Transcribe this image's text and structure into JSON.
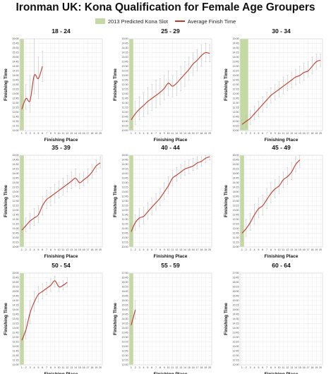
{
  "title": "Ironman UK: Kona Qualification for Female Age Groupers",
  "legend": {
    "kona_slot": "2013 Predicted Kona Slot",
    "avg_finish": "Average Finish Time"
  },
  "colors": {
    "kona_slot": "#c5d9a5",
    "line": "#c0392b",
    "grid": "#e3e3e3",
    "error_bar": "#bbbbbb"
  },
  "chart_data": [
    {
      "type": "line",
      "title": "18 - 24",
      "xlabel": "Finishing Place",
      "ylabel": "Finishing Time",
      "x_ticks": [
        "1",
        "2",
        "3",
        "4",
        "5",
        "6",
        "7",
        "8",
        "9",
        "10",
        "11",
        "12",
        "13",
        "14",
        "15",
        "16",
        "17",
        "18",
        "19",
        "20"
      ],
      "y_ticks": [
        "11:00",
        "11:15",
        "11:30",
        "11:45",
        "12:00",
        "12:15",
        "12:30",
        "12:45",
        "13:00",
        "13:15",
        "13:30",
        "13:45",
        "14:00",
        "14:15",
        "14:30",
        "14:45",
        "15:00",
        "15:15",
        "15:30",
        "15:45",
        "16:00"
      ],
      "ylim": [
        "11:00",
        "16:00"
      ],
      "kona_slots": 1,
      "x": [
        1,
        2,
        3,
        4,
        5,
        6
      ],
      "avg_time": [
        "12:10",
        "12:45",
        "12:38",
        "14:00",
        "13:50",
        "14:30"
      ],
      "range_low": [
        "11:40",
        "12:10",
        "12:00",
        "13:00",
        "12:45",
        "13:40"
      ],
      "range_high": [
        "12:50",
        "13:30",
        "14:00",
        "16:00",
        "15:00",
        "15:20"
      ]
    },
    {
      "type": "line",
      "title": "25 - 29",
      "xlabel": "Finishing Place",
      "ylabel": "Finishing Time",
      "x_ticks": [
        "1",
        "2",
        "3",
        "4",
        "5",
        "6",
        "7",
        "8",
        "9",
        "10",
        "11",
        "12",
        "13",
        "14",
        "15",
        "16",
        "17",
        "18",
        "19",
        "20"
      ],
      "y_ticks": [
        "10:00",
        "10:15",
        "10:30",
        "10:45",
        "11:00",
        "11:15",
        "11:30",
        "11:45",
        "12:00",
        "12:15",
        "12:30",
        "12:45",
        "13:00",
        "13:15",
        "13:30",
        "13:45",
        "14:00",
        "14:15",
        "14:30",
        "14:45",
        "15:00"
      ],
      "ylim": [
        "10:00",
        "15:00"
      ],
      "kona_slots": 1,
      "x": [
        1,
        2,
        3,
        4,
        5,
        6,
        7,
        8,
        9,
        10,
        11,
        12,
        13,
        14,
        15,
        16,
        17,
        18,
        19,
        20
      ],
      "avg_time": [
        "10:35",
        "10:55",
        "11:10",
        "11:22",
        "11:35",
        "11:45",
        "11:55",
        "12:05",
        "12:18",
        "12:35",
        "12:25",
        "12:35",
        "12:50",
        "13:05",
        "13:20",
        "13:38",
        "13:50",
        "14:05",
        "14:15",
        "14:12"
      ],
      "range_low": [
        "10:10",
        "10:20",
        "10:35",
        "10:45",
        "10:55",
        "11:05",
        "11:15",
        "11:25",
        "11:40",
        "11:55",
        "11:50",
        "11:55",
        "12:10",
        "12:25",
        "12:45",
        "13:00",
        "13:15",
        "13:30",
        "13:45",
        "13:45"
      ],
      "range_high": [
        "11:05",
        "11:35",
        "11:50",
        "12:05",
        "12:20",
        "12:30",
        "12:45",
        "12:50",
        "13:00",
        "13:15",
        "13:00",
        "13:15",
        "13:30",
        "13:45",
        "14:00",
        "14:15",
        "14:25",
        "14:40",
        "14:45",
        "14:40"
      ]
    },
    {
      "type": "line",
      "title": "30 - 34",
      "xlabel": "Finishing Place",
      "ylabel": "Finishing Time",
      "x_ticks": [
        "1",
        "2",
        "3",
        "4",
        "5",
        "6",
        "7",
        "8",
        "9",
        "10",
        "11",
        "12",
        "13",
        "14",
        "15",
        "16",
        "17",
        "18",
        "19",
        "20"
      ],
      "y_ticks": [
        "10:00",
        "10:15",
        "10:30",
        "10:45",
        "11:00",
        "11:15",
        "11:30",
        "11:45",
        "12:00",
        "12:15",
        "12:30",
        "12:45",
        "13:00",
        "13:15",
        "13:30",
        "13:45",
        "14:00",
        "14:15",
        "14:30",
        "14:45",
        "15:00"
      ],
      "ylim": [
        "10:00",
        "15:00"
      ],
      "kona_slots": 2,
      "x": [
        1,
        2,
        3,
        4,
        5,
        6,
        7,
        8,
        9,
        10,
        11,
        12,
        13,
        14,
        15,
        16,
        17,
        18,
        19,
        20
      ],
      "avg_time": [
        "10:20",
        "10:30",
        "10:40",
        "10:55",
        "11:10",
        "11:25",
        "11:40",
        "11:55",
        "12:05",
        "12:15",
        "12:25",
        "12:35",
        "12:45",
        "12:55",
        "13:00",
        "13:10",
        "13:15",
        "13:30",
        "13:45",
        "13:50"
      ],
      "range_low": [
        "10:05",
        "10:10",
        "10:20",
        "10:35",
        "10:45",
        "11:00",
        "11:15",
        "11:30",
        "11:40",
        "11:50",
        "12:00",
        "12:10",
        "12:20",
        "12:30",
        "12:35",
        "12:45",
        "12:55",
        "13:05",
        "13:20",
        "13:30"
      ],
      "range_high": [
        "10:35",
        "10:50",
        "11:05",
        "11:20",
        "11:35",
        "11:50",
        "12:05",
        "12:20",
        "12:30",
        "12:40",
        "12:55",
        "13:00",
        "13:10",
        "13:20",
        "13:30",
        "13:40",
        "13:45",
        "14:00",
        "14:10",
        "14:10"
      ]
    },
    {
      "type": "line",
      "title": "35 - 39",
      "xlabel": "Finishing Place",
      "ylabel": "Finishing Time",
      "x_ticks": [
        "1",
        "2",
        "3",
        "4",
        "5",
        "6",
        "7",
        "8",
        "9",
        "10",
        "11",
        "12",
        "13",
        "14",
        "15",
        "16",
        "17",
        "18",
        "19",
        "20"
      ],
      "y_ticks": [
        "10:00",
        "10:15",
        "10:30",
        "10:45",
        "11:00",
        "11:15",
        "11:30",
        "11:45",
        "12:00",
        "12:15",
        "12:30",
        "12:45",
        "13:00",
        "13:15",
        "13:30",
        "13:45",
        "14:00",
        "14:15",
        "14:30",
        "14:45",
        "15:00"
      ],
      "ylim": [
        "10:00",
        "15:00"
      ],
      "kona_slots": 1,
      "x": [
        1,
        2,
        3,
        4,
        5,
        6,
        7,
        8,
        9,
        10,
        11,
        12,
        13,
        14,
        15,
        16,
        17,
        18,
        19,
        20
      ],
      "avg_time": [
        "10:55",
        "11:10",
        "11:25",
        "11:35",
        "11:45",
        "12:15",
        "12:35",
        "12:45",
        "12:55",
        "13:05",
        "13:15",
        "13:25",
        "13:35",
        "13:45",
        "13:30",
        "13:40",
        "13:50",
        "14:05",
        "14:25",
        "14:35"
      ],
      "range_low": [
        "10:35",
        "10:50",
        "11:00",
        "11:10",
        "11:20",
        "11:45",
        "12:05",
        "12:15",
        "12:25",
        "12:40",
        "12:50",
        "13:00",
        "13:10",
        "13:20",
        "13:10",
        "13:20",
        "13:30",
        "13:45",
        "14:05",
        "14:20"
      ],
      "range_high": [
        "11:15",
        "11:35",
        "11:50",
        "12:05",
        "12:15",
        "12:45",
        "13:05",
        "13:15",
        "13:25",
        "13:35",
        "13:45",
        "13:55",
        "14:05",
        "14:15",
        "14:00",
        "14:05",
        "14:15",
        "14:30",
        "14:45",
        "14:55"
      ]
    },
    {
      "type": "line",
      "title": "40 - 44",
      "xlabel": "Finishing Place",
      "ylabel": "Finishing Time",
      "x_ticks": [
        "1",
        "2",
        "3",
        "4",
        "5",
        "6",
        "7",
        "8",
        "9",
        "10",
        "11",
        "12",
        "13",
        "14",
        "15",
        "16",
        "17",
        "18",
        "19",
        "20"
      ],
      "y_ticks": [
        "10:00",
        "10:15",
        "10:30",
        "10:45",
        "11:00",
        "11:15",
        "11:30",
        "11:45",
        "12:00",
        "12:15",
        "12:30",
        "12:45",
        "13:00",
        "13:15",
        "13:30",
        "13:45",
        "14:00",
        "14:15",
        "14:30",
        "14:45",
        "15:00"
      ],
      "ylim": [
        "10:00",
        "15:00"
      ],
      "kona_slots": 1,
      "x": [
        1,
        2,
        3,
        4,
        5,
        6,
        7,
        8,
        9,
        10,
        11,
        12,
        13,
        14,
        15,
        16,
        17,
        18,
        19,
        20
      ],
      "avg_time": [
        "10:50",
        "11:20",
        "11:35",
        "11:40",
        "11:55",
        "12:10",
        "12:25",
        "12:40",
        "13:00",
        "13:20",
        "13:45",
        "13:55",
        "14:05",
        "14:15",
        "14:20",
        "14:25",
        "14:35",
        "14:40",
        "14:50",
        "14:55"
      ],
      "range_low": [
        "10:25",
        "10:55",
        "11:05",
        "11:15",
        "11:30",
        "11:45",
        "12:00",
        "12:15",
        "12:35",
        "12:55",
        "13:20",
        "13:35",
        "13:45",
        "13:55",
        "14:00",
        "14:10",
        "14:15",
        "14:25",
        "14:35",
        "14:45"
      ],
      "range_high": [
        "11:15",
        "11:45",
        "12:05",
        "12:10",
        "12:25",
        "12:40",
        "12:55",
        "13:10",
        "13:30",
        "13:50",
        "14:10",
        "14:20",
        "14:30",
        "14:40",
        "14:45",
        "14:50",
        "14:55",
        "14:55",
        "15:00",
        "15:00"
      ]
    },
    {
      "type": "line",
      "title": "45 - 49",
      "xlabel": "Finishing Place",
      "ylabel": "Finishing Time",
      "x_ticks": [
        "1",
        "2",
        "3",
        "4",
        "5",
        "6",
        "7",
        "8",
        "9",
        "10",
        "11",
        "12",
        "13",
        "14",
        "15",
        "16",
        "17",
        "18",
        "19",
        "20"
      ],
      "y_ticks": [
        "11:00",
        "11:15",
        "11:30",
        "11:45",
        "12:00",
        "12:15",
        "12:30",
        "12:45",
        "13:00",
        "13:15",
        "13:30",
        "13:45",
        "14:00",
        "14:15",
        "14:30",
        "14:45",
        "15:00",
        "15:15",
        "15:30",
        "15:45",
        "16:00"
      ],
      "ylim": [
        "11:00",
        "16:00"
      ],
      "kona_slots": 1,
      "x": [
        1,
        2,
        3,
        4,
        5,
        6,
        7,
        8,
        9,
        10,
        11,
        12,
        13,
        14,
        15
      ],
      "avg_time": [
        "11:45",
        "12:00",
        "12:20",
        "12:45",
        "13:05",
        "13:15",
        "13:35",
        "13:55",
        "14:10",
        "14:20",
        "14:40",
        "14:50",
        "15:05",
        "15:30",
        "15:45"
      ],
      "range_low": [
        "11:20",
        "11:35",
        "11:55",
        "12:15",
        "12:35",
        "12:45",
        "13:05",
        "13:25",
        "13:40",
        "13:55",
        "14:15",
        "14:25",
        "14:40",
        "15:05",
        "15:20"
      ],
      "range_high": [
        "12:10",
        "12:30",
        "12:50",
        "13:20",
        "13:40",
        "13:50",
        "14:10",
        "14:30",
        "14:40",
        "14:50",
        "15:05",
        "15:20",
        "15:35",
        "15:55",
        "16:00"
      ]
    },
    {
      "type": "line",
      "title": "50 - 54",
      "xlabel": "Finishing Place",
      "ylabel": "Finishing Time",
      "x_ticks": [
        "1",
        "2",
        "3",
        "4",
        "5",
        "6",
        "7",
        "8",
        "9",
        "10",
        "11",
        "12",
        "13",
        "14",
        "15",
        "16",
        "17",
        "18",
        "19",
        "20"
      ],
      "y_ticks": [
        "11:00",
        "11:15",
        "11:30",
        "11:45",
        "12:00",
        "12:15",
        "12:30",
        "12:45",
        "13:00",
        "13:15",
        "13:30",
        "13:45",
        "14:00",
        "14:15",
        "14:30",
        "14:45",
        "15:00",
        "15:15",
        "15:30",
        "15:45",
        "16:00"
      ],
      "ylim": [
        "11:00",
        "16:00"
      ],
      "kona_slots": 1,
      "x": [
        1,
        2,
        3,
        4,
        5,
        6,
        7,
        8,
        9,
        10,
        11,
        12
      ],
      "avg_time": [
        "12:20",
        "12:55",
        "13:50",
        "14:25",
        "14:50",
        "15:00",
        "15:10",
        "15:20",
        "15:35",
        "15:15",
        "15:20",
        "15:30"
      ],
      "range_low": [
        "12:00",
        "12:25",
        "13:15",
        "13:55",
        "14:25",
        "14:35",
        "14:50",
        "15:00",
        "15:15",
        "15:00",
        "15:05",
        "15:15"
      ],
      "range_high": [
        "12:45",
        "13:30",
        "14:30",
        "15:00",
        "15:15",
        "15:25",
        "15:30",
        "15:40",
        "15:50",
        "15:30",
        "15:35",
        "15:45"
      ]
    },
    {
      "type": "line",
      "title": "55 - 59",
      "xlabel": "Finishing Place",
      "ylabel": "Finishing Time",
      "x_ticks": [
        "1",
        "2",
        "3",
        "4",
        "5",
        "6",
        "7",
        "8",
        "9",
        "10",
        "11",
        "12",
        "13",
        "14",
        "15",
        "16",
        "17",
        "18",
        "19",
        "20"
      ],
      "y_ticks": [
        "12:00",
        "12:15",
        "12:30",
        "12:45",
        "13:00",
        "13:15",
        "13:30",
        "13:45",
        "14:00",
        "14:15",
        "14:30",
        "14:45",
        "15:00",
        "15:15",
        "15:30",
        "15:45",
        "16:00",
        "16:15",
        "16:30",
        "16:45",
        "17:00"
      ],
      "ylim": [
        "12:00",
        "17:00"
      ],
      "kona_slots": 1,
      "x": [
        1,
        2
      ],
      "avg_time": [
        "14:10",
        "15:00"
      ],
      "range_low": [
        "13:40",
        "14:30"
      ],
      "range_high": [
        "14:40",
        "15:30"
      ]
    },
    {
      "type": "line",
      "title": "60 - 64",
      "xlabel": "Finishing Place",
      "ylabel": "Finishing Time",
      "x_ticks": [
        "1",
        "2",
        "3",
        "4",
        "5",
        "6",
        "7",
        "8",
        "9",
        "10",
        "11",
        "12",
        "13",
        "14",
        "15",
        "16",
        "17",
        "18",
        "19",
        "20"
      ],
      "y_ticks": [
        "12:00",
        "12:15",
        "12:30",
        "12:45",
        "13:00",
        "13:15",
        "13:30",
        "13:45",
        "14:00",
        "14:15",
        "14:30",
        "14:45",
        "15:00",
        "15:15",
        "15:30",
        "15:45",
        "16:00",
        "16:15",
        "16:30",
        "16:45",
        "17:00"
      ],
      "ylim": [
        "12:00",
        "17:00"
      ],
      "kona_slots": 0,
      "x": [],
      "avg_time": [],
      "range_low": [],
      "range_high": []
    }
  ]
}
